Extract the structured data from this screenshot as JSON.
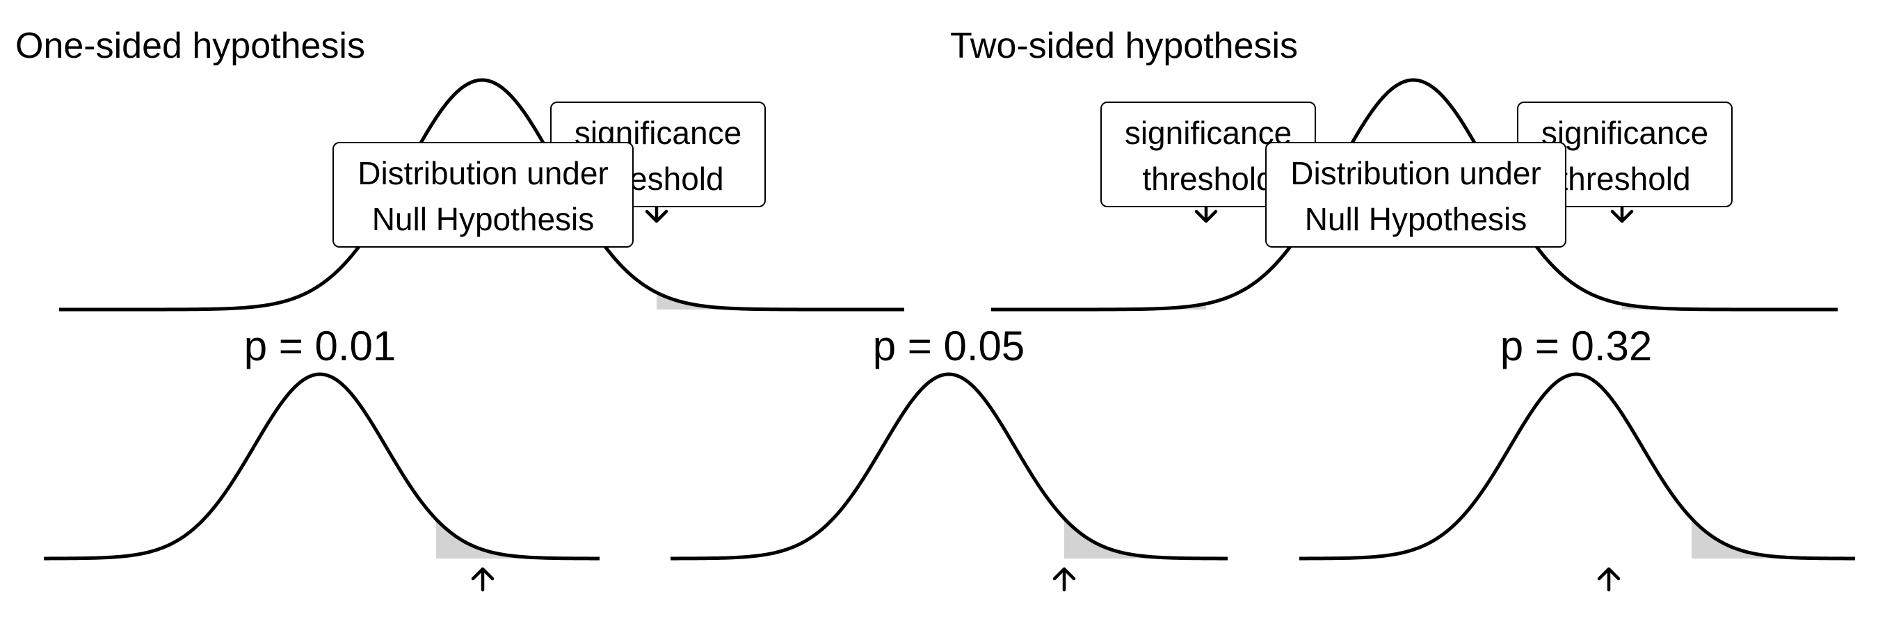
{
  "panels": {
    "one_sided": {
      "title": "One-sided hypothesis",
      "threshold_callout": {
        "line1": "significance",
        "line2": "threshold"
      },
      "null_callout": {
        "line1": "Distribution under",
        "line2": "Null Hypothesis"
      }
    },
    "two_sided": {
      "title": "Two-sided hypothesis",
      "threshold_callout_left": {
        "line1": "significance",
        "line2": "threshold"
      },
      "threshold_callout_right": {
        "line1": "significance",
        "line2": "threshold"
      },
      "null_callout": {
        "line1": "Distribution under",
        "line2": "Null Hypothesis"
      }
    }
  },
  "examples": [
    {
      "label": "p = 0.01",
      "p_value": 0.01
    },
    {
      "label": "p = 0.05",
      "p_value": 0.05
    },
    {
      "label": "p = 0.32",
      "p_value": 0.32
    }
  ],
  "colors": {
    "curve": "#000000",
    "shaded_tail": "#d3d3d3",
    "callout_fill": "#ffffff"
  }
}
